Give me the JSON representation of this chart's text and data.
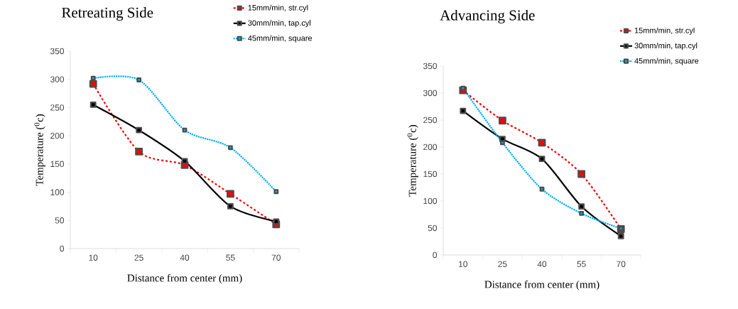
{
  "chart_data": [
    {
      "type": "line",
      "title": "Retreating Side",
      "xlabel": "Distance from center (mm)",
      "ylabel": "Temperature ($^{0}$c)",
      "categories": [
        "10",
        "25",
        "40",
        "55",
        "70"
      ],
      "ylim": [
        0,
        350
      ],
      "yticks": [
        0,
        50,
        100,
        150,
        200,
        250,
        300,
        350
      ],
      "grid": false,
      "legend": "top right",
      "marker": "square",
      "series": [
        {
          "name": "15mm/min, str.cyl",
          "color": "#ff0000",
          "line_style": "dashed",
          "values": [
            292,
            172,
            148,
            97,
            43
          ]
        },
        {
          "name": "30mm/min, tap.cyl",
          "color": "#000000",
          "line_style": "solid",
          "values": [
            255,
            210,
            155,
            75,
            48
          ]
        },
        {
          "name": "45mm/min, square",
          "color": "#00b0f0",
          "line_style": "dotted",
          "values": [
            302,
            299,
            210,
            179,
            101
          ]
        }
      ]
    },
    {
      "type": "line",
      "title": "Advancing Side",
      "xlabel": "Distance from center (mm)",
      "ylabel": "Temperature ($^{0}$c)",
      "categories": [
        "10",
        "25",
        "40",
        "55",
        "70"
      ],
      "ylim": [
        0,
        350
      ],
      "yticks": [
        0,
        50,
        100,
        150,
        200,
        250,
        300,
        350
      ],
      "grid": false,
      "legend": "top right",
      "marker": "square",
      "series": [
        {
          "name": "15mm/min, str.cyl",
          "color": "#ff0000",
          "line_style": "dashed",
          "values": [
            305,
            249,
            208,
            150,
            48
          ]
        },
        {
          "name": "30mm/min, tap.cyl",
          "color": "#000000",
          "line_style": "solid",
          "values": [
            267,
            215,
            178,
            90,
            35
          ]
        },
        {
          "name": "45mm/min, square",
          "color": "#00b0f0",
          "line_style": "dotted",
          "values": [
            309,
            208,
            122,
            77,
            49
          ]
        }
      ]
    }
  ]
}
